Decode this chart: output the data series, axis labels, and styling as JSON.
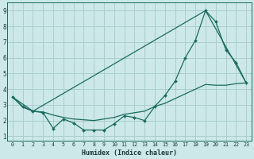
{
  "xlabel": "Humidex (Indice chaleur)",
  "bg_color": "#cce8e8",
  "grid_color": "#aacece",
  "line_color": "#1a6b5e",
  "xlim": [
    -0.5,
    23.5
  ],
  "ylim": [
    0.7,
    9.5
  ],
  "xticks": [
    0,
    1,
    2,
    3,
    4,
    5,
    6,
    7,
    8,
    9,
    10,
    11,
    12,
    13,
    14,
    15,
    16,
    17,
    18,
    19,
    20,
    21,
    22,
    23
  ],
  "yticks": [
    1,
    2,
    3,
    4,
    5,
    6,
    7,
    8,
    9
  ],
  "series1_x": [
    0,
    1,
    2,
    3,
    4,
    5,
    6,
    7,
    8,
    9,
    10,
    11,
    12,
    13,
    14,
    15,
    16,
    17,
    18,
    19,
    20,
    21,
    22,
    23
  ],
  "series1_y": [
    3.5,
    2.9,
    2.6,
    2.5,
    1.5,
    2.1,
    1.85,
    1.4,
    1.4,
    1.4,
    1.8,
    2.3,
    2.2,
    2.0,
    2.9,
    3.6,
    4.5,
    6.0,
    7.1,
    9.0,
    8.3,
    6.5,
    5.7,
    4.4
  ],
  "series2_x": [
    0,
    2,
    19,
    23
  ],
  "series2_y": [
    3.5,
    2.6,
    9.0,
    4.4
  ],
  "series3_x": [
    0,
    1,
    2,
    3,
    4,
    5,
    6,
    7,
    8,
    9,
    10,
    11,
    12,
    13,
    14,
    15,
    16,
    17,
    18,
    19,
    20,
    21,
    22,
    23
  ],
  "series3_y": [
    3.5,
    2.85,
    2.6,
    2.55,
    2.35,
    2.2,
    2.1,
    2.05,
    2.0,
    2.1,
    2.2,
    2.4,
    2.5,
    2.6,
    2.9,
    3.1,
    3.4,
    3.7,
    4.0,
    4.3,
    4.25,
    4.25,
    4.35,
    4.4
  ]
}
